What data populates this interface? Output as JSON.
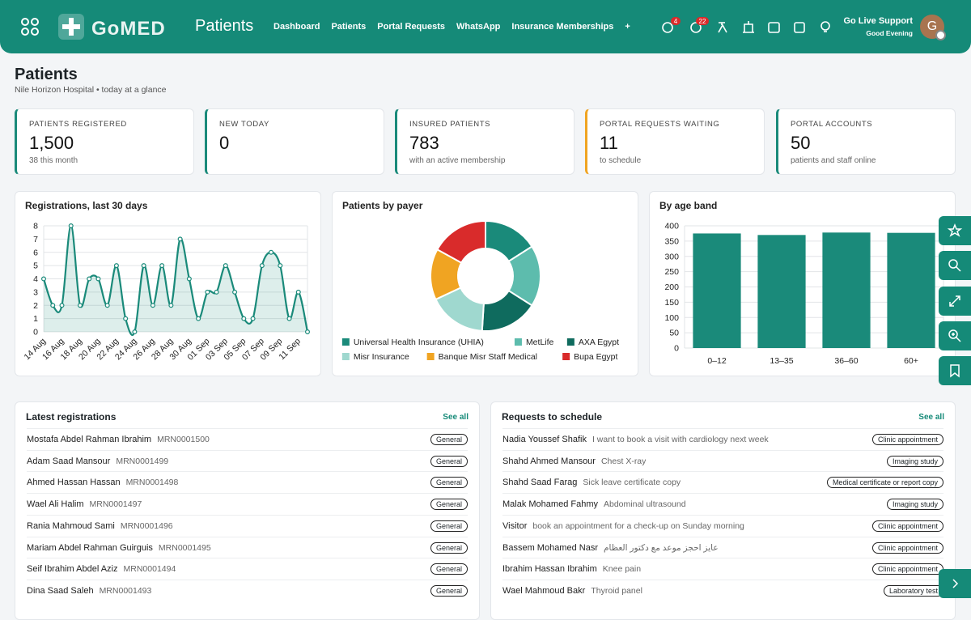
{
  "header": {
    "logo": "GoMED",
    "title": "Patients",
    "nav": [
      "Dashboard",
      "Patients",
      "Portal Requests",
      "WhatsApp",
      "Insurance Memberships",
      "+"
    ],
    "badges": [
      "4",
      "22"
    ],
    "user": "Go Live Support",
    "greeting": "Good Evening",
    "avatar": "G"
  },
  "page": {
    "title": "Patients",
    "subtitle": "Nile Horizon Hospital • today at a glance"
  },
  "stats": [
    {
      "label": "PATIENTS REGISTERED",
      "value": "1,500",
      "note": "38 this month",
      "color": "#1a8a7a"
    },
    {
      "label": "NEW TODAY",
      "value": "0",
      "note": "",
      "color": "#1a8a7a"
    },
    {
      "label": "INSURED PATIENTS",
      "value": "783",
      "note": "with an active membership",
      "color": "#1a8a7a"
    },
    {
      "label": "PORTAL REQUESTS WAITING",
      "value": "11",
      "note": "to schedule",
      "color": "#f0a422"
    },
    {
      "label": "PORTAL ACCOUNTS",
      "value": "50",
      "note": "patients and staff online",
      "color": "#1a8a7a"
    }
  ],
  "chart_data": [
    {
      "type": "line",
      "title": "Registrations, last 30 days",
      "color": "#1a8a7a",
      "grid": true,
      "categories": [
        "14 Aug",
        null,
        "16 Aug",
        null,
        "18 Aug",
        null,
        "20 Aug",
        null,
        "22 Aug",
        null,
        "24 Aug",
        null,
        "26 Aug",
        null,
        "28 Aug",
        null,
        "30 Aug",
        null,
        "01 Sep",
        null,
        "03 Sep",
        null,
        "05 Sep",
        null,
        "07 Sep",
        null,
        "09 Sep",
        null,
        "11 Sep",
        null
      ],
      "values": [
        4,
        2,
        2,
        8,
        2,
        4,
        4,
        2,
        5,
        1,
        0,
        5,
        2,
        5,
        2,
        7,
        4,
        1,
        3,
        3,
        5,
        3,
        1,
        1,
        5,
        6,
        5,
        1,
        3,
        0
      ],
      "ylim": [
        0,
        8
      ],
      "yticks": [
        0,
        1,
        2,
        3,
        4,
        5,
        6,
        7,
        8
      ]
    },
    {
      "type": "pie",
      "title": "Patients by payer",
      "categories": [
        "Universal Health Insurance (UHIA)",
        "MetLife",
        "AXA Egypt",
        "Misr Insurance",
        "Banque Misr Staff Medical",
        "Bupa Egypt"
      ],
      "values": [
        16,
        18,
        17,
        17,
        15,
        17
      ],
      "colors": [
        "#1a8a7a",
        "#5dbcad",
        "#0f6b5e",
        "#9fd8cf",
        "#f0a422",
        "#d92b2b"
      ]
    },
    {
      "type": "bar",
      "title": "By age band",
      "color": "#1a8a7a",
      "grid": true,
      "categories": [
        "0–12",
        "13–35",
        "36–60",
        "60+"
      ],
      "values": [
        375,
        370,
        378,
        377
      ],
      "ylim": [
        0,
        400
      ],
      "yticks": [
        0,
        50,
        100,
        150,
        200,
        250,
        300,
        350,
        400
      ]
    }
  ],
  "latest": {
    "title": "Latest registrations",
    "link": "See all",
    "rows": [
      {
        "name": "Mostafa Abdel Rahman Ibrahim",
        "id": "MRN0001500",
        "tag": "General"
      },
      {
        "name": "Adam Saad Mansour",
        "id": "MRN0001499",
        "tag": "General"
      },
      {
        "name": "Ahmed Hassan Hassan",
        "id": "MRN0001498",
        "tag": "General"
      },
      {
        "name": "Wael Ali Halim",
        "id": "MRN0001497",
        "tag": "General"
      },
      {
        "name": "Rania Mahmoud Sami",
        "id": "MRN0001496",
        "tag": "General"
      },
      {
        "name": "Mariam Abdel Rahman Guirguis",
        "id": "MRN0001495",
        "tag": "General"
      },
      {
        "name": "Seif Ibrahim Abdel Aziz",
        "id": "MRN0001494",
        "tag": "General"
      },
      {
        "name": "Dina Saad Saleh",
        "id": "MRN0001493",
        "tag": "General"
      }
    ]
  },
  "requests": {
    "title": "Requests to schedule",
    "link": "See all",
    "rows": [
      {
        "name": "Nadia Youssef Shafik",
        "id": "I want to book a visit with cardiology next week",
        "tag": "Clinic appointment"
      },
      {
        "name": "Shahd Ahmed Mansour",
        "id": "Chest X-ray",
        "tag": "Imaging study"
      },
      {
        "name": "Shahd Saad Farag",
        "id": "Sick leave certificate copy",
        "tag": "Medical certificate or report copy"
      },
      {
        "name": "Malak Mohamed Fahmy",
        "id": "Abdominal ultrasound",
        "tag": "Imaging study"
      },
      {
        "name": "Visitor",
        "id": "book an appointment for a check-up on Sunday morning",
        "tag": "Clinic appointment"
      },
      {
        "name": "Bassem Mohamed Nasr",
        "id": "عايز احجز موعد مع دكتور العظام",
        "tag": "Clinic appointment"
      },
      {
        "name": "Ibrahim Hassan Ibrahim",
        "id": "Knee pain",
        "tag": "Clinic appointment"
      },
      {
        "name": "Wael Mahmoud Bakr",
        "id": "Thyroid panel",
        "tag": "Laboratory test"
      }
    ]
  }
}
